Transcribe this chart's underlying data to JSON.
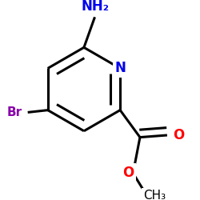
{
  "atom_colors": {
    "N_ring": "#0000ee",
    "N_amino": "#0000ee",
    "Br": "#8800aa",
    "O": "#ff0000",
    "C": "#000000"
  },
  "labels": {
    "NH2": "NH₂",
    "N": "N",
    "Br": "Br",
    "O": "O",
    "CH3": "CH₃"
  },
  "background": "#ffffff",
  "figsize": [
    2.5,
    2.5
  ],
  "dpi": 100,
  "lw": 2.2,
  "dbo": 0.018
}
